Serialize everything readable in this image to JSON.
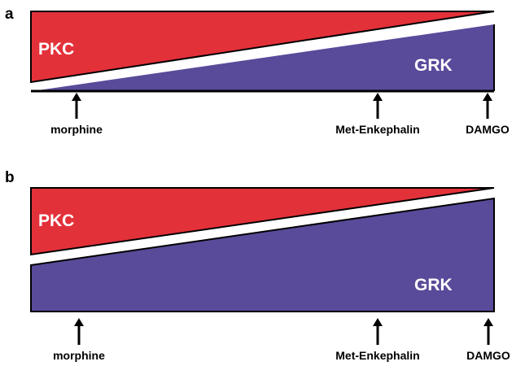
{
  "colors": {
    "pkc": "#e3313a",
    "grk": "#5a4a9a",
    "outline": "#000000"
  },
  "panels": [
    {
      "letter": "a",
      "pkc_label": "PKC",
      "grk_label": "GRK",
      "agonists": [
        {
          "label": "morphine"
        },
        {
          "label": "Met-Enkephalin"
        },
        {
          "label": "DAMGO"
        }
      ]
    },
    {
      "letter": "b",
      "pkc_label": "PKC",
      "grk_label": "GRK",
      "agonists": [
        {
          "label": "morphine"
        },
        {
          "label": "Met-Enkephalin"
        },
        {
          "label": "DAMGO"
        }
      ]
    }
  ]
}
